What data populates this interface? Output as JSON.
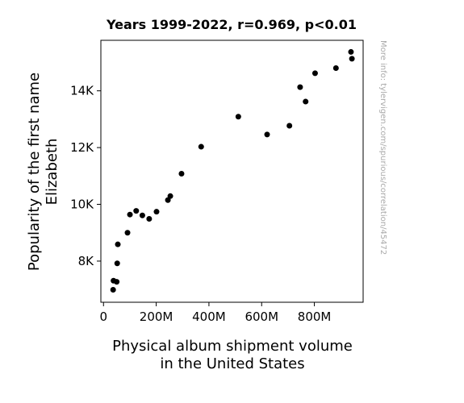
{
  "chart_data": {
    "type": "scatter",
    "title": "Years 1999-2022, r=0.969, p<0.01",
    "xlabel_lines": [
      "Physical album shipment volume",
      "in the United States"
    ],
    "ylabel_lines": [
      "Popularity of the first name",
      "Elizabeth"
    ],
    "side_note": "More info: tylervigen.com/spurious/correlation/45472",
    "xlim": [
      -10,
      985
    ],
    "ylim": [
      6550,
      15780
    ],
    "x_ticks": [
      {
        "value": 0,
        "label": "0"
      },
      {
        "value": 200,
        "label": "200M"
      },
      {
        "value": 400,
        "label": "400M"
      },
      {
        "value": 600,
        "label": "600M"
      },
      {
        "value": 800,
        "label": "800M"
      }
    ],
    "y_ticks": [
      {
        "value": 8000,
        "label": "8K"
      },
      {
        "value": 10000,
        "label": "10K"
      },
      {
        "value": 12000,
        "label": "12K"
      },
      {
        "value": 14000,
        "label": "14K"
      }
    ],
    "x_units": "millions of units",
    "points": [
      {
        "x": 938.9,
        "y": 15370
      },
      {
        "x": 942.5,
        "y": 15130
      },
      {
        "x": 881.9,
        "y": 14800
      },
      {
        "x": 802.7,
        "y": 14620
      },
      {
        "x": 745.9,
        "y": 14130
      },
      {
        "x": 766.8,
        "y": 13620
      },
      {
        "x": 705.4,
        "y": 12770
      },
      {
        "x": 620.7,
        "y": 12460
      },
      {
        "x": 511.5,
        "y": 13090
      },
      {
        "x": 370.5,
        "y": 12030
      },
      {
        "x": 296.0,
        "y": 11080
      },
      {
        "x": 253.5,
        "y": 10290
      },
      {
        "x": 244.3,
        "y": 10150
      },
      {
        "x": 201.2,
        "y": 9740
      },
      {
        "x": 173.3,
        "y": 9490
      },
      {
        "x": 147.4,
        "y": 9610
      },
      {
        "x": 124.0,
        "y": 9770
      },
      {
        "x": 100.3,
        "y": 9640
      },
      {
        "x": 91.1,
        "y": 9000
      },
      {
        "x": 54.3,
        "y": 8590
      },
      {
        "x": 52.0,
        "y": 7920
      },
      {
        "x": 50.0,
        "y": 7270
      },
      {
        "x": 38.0,
        "y": 7310
      },
      {
        "x": 36.5,
        "y": 6990
      }
    ],
    "marker_color": "#000000"
  }
}
